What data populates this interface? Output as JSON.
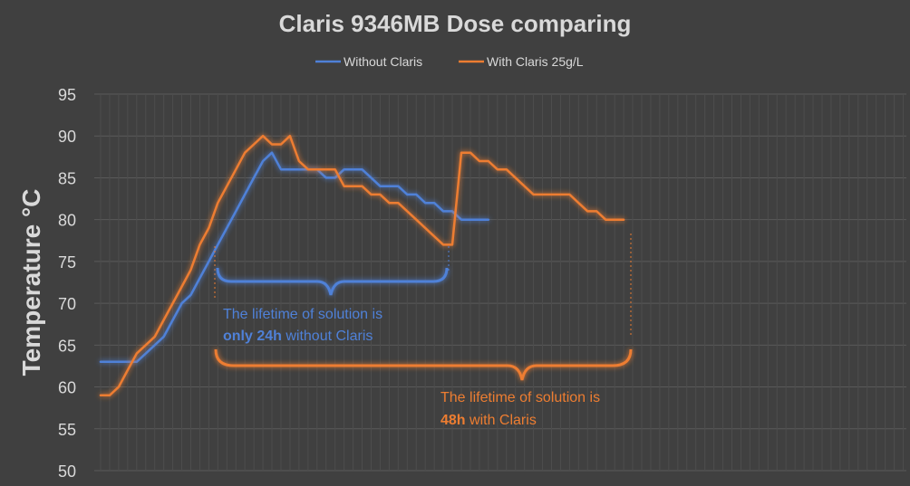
{
  "chart_data": {
    "type": "line",
    "title": "Claris 9346MB Dose comparing",
    "ylabel": "Temperature °C",
    "xlabel": "",
    "ylim": [
      50,
      95
    ],
    "yticks": [
      95,
      90,
      85,
      80,
      75,
      70,
      65,
      60,
      55,
      50
    ],
    "grid": true,
    "legend_position": "top-center",
    "series": [
      {
        "name": "Without Claris",
        "color": "#4f81d8",
        "values": [
          63,
          63,
          63,
          63,
          63,
          64,
          65,
          66,
          68,
          70,
          71,
          73,
          75,
          77,
          79,
          81,
          83,
          85,
          87,
          88,
          86,
          86,
          86,
          86,
          86,
          85,
          85,
          86,
          86,
          86,
          85,
          84,
          84,
          84,
          83,
          83,
          82,
          82,
          81,
          81,
          80,
          80,
          80,
          80
        ]
      },
      {
        "name": "With Claris 25g/L",
        "color": "#ed7d31",
        "values": [
          59,
          59,
          60,
          62,
          64,
          65,
          66,
          68,
          70,
          72,
          74,
          77,
          79,
          82,
          84,
          86,
          88,
          89,
          90,
          89,
          89,
          90,
          87,
          86,
          86,
          86,
          86,
          84,
          84,
          84,
          83,
          83,
          82,
          82,
          81,
          80,
          79,
          78,
          77,
          77,
          88,
          88,
          87,
          87,
          86,
          86,
          85,
          84,
          83,
          83,
          83,
          83,
          83,
          82,
          81,
          81,
          80,
          80,
          80
        ]
      }
    ]
  },
  "legend": {
    "without_label": "Without Claris",
    "with_label": "With Claris 25g/L"
  },
  "annotations": {
    "blue_line1": "The lifetime of solution is",
    "blue_bold": "only 24h",
    "blue_rest": " without Claris",
    "orange_line1": "The lifetime of solution is",
    "orange_bold": "48h",
    "orange_rest": " with Claris"
  }
}
